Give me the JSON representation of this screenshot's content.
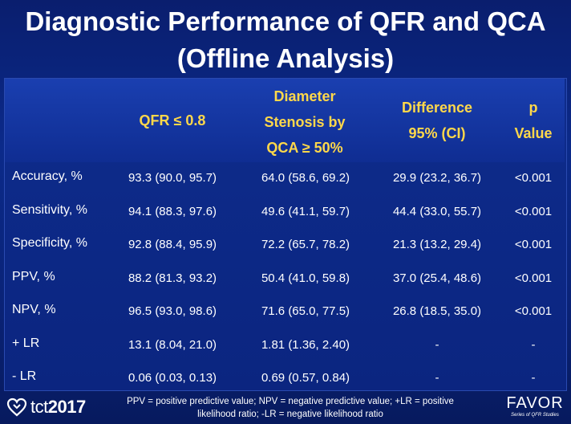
{
  "title": {
    "line1": "Diagnostic Performance of QFR and QCA",
    "line2": "(Offline Analysis)"
  },
  "columns": {
    "qfr": "QFR ≤ 0.8",
    "qca_line1": "Diameter",
    "qca_line2": "Stenosis by",
    "qca_line3": "QCA ≥ 50%",
    "diff_line1": "Difference",
    "diff_line2": "95% (CI)",
    "p_line1": "p",
    "p_line2": "Value"
  },
  "rows": [
    {
      "label": "Accuracy, %",
      "qfr": "93.3 (90.0, 95.7)",
      "qca": "64.0 (58.6, 69.2)",
      "diff": "29.9 (23.2, 36.7)",
      "p": "<0.001"
    },
    {
      "label": "Sensitivity, %",
      "qfr": "94.1 (88.3, 97.6)",
      "qca": "49.6 (41.1, 59.7)",
      "diff": "44.4 (33.0, 55.7)",
      "p": "<0.001"
    },
    {
      "label": "Specificity, %",
      "qfr": "92.8 (88.4, 95.9)",
      "qca": "72.2 (65.7, 78.2)",
      "diff": "21.3 (13.2, 29.4)",
      "p": "<0.001"
    },
    {
      "label": "PPV, %",
      "qfr": "88.2 (81.3, 93.2)",
      "qca": "50.4 (41.0, 59.8)",
      "diff": "37.0 (25.4, 48.6)",
      "p": "<0.001"
    },
    {
      "label": "NPV, %",
      "qfr": "96.5 (93.0, 98.6)",
      "qca": "71.6 (65.0, 77.5)",
      "diff": "26.8 (18.5, 35.0)",
      "p": "<0.001"
    },
    {
      "label": "+ LR",
      "qfr": "13.1 (8.04, 21.0)",
      "qca": "1.81 (1.36, 2.40)",
      "diff": "-",
      "p": "-"
    },
    {
      "label": "- LR",
      "qfr": "0.06 (0.03, 0.13)",
      "qca": "0.69 (0.57, 0.84)",
      "diff": "-",
      "p": "-"
    }
  ],
  "footer": {
    "line1": "PPV = positive predictive value; NPV = negative predictive value; +LR = positive",
    "line2": "likelihood ratio; -LR = negative likelihood ratio"
  },
  "logos": {
    "tct_prefix": "tct",
    "tct_year": "2017",
    "favor_word": "FAVOR",
    "favor_sub": "Series of QFR Studies"
  },
  "colors": {
    "header_text": "#ffd84a",
    "background": "#0b2a8a"
  }
}
